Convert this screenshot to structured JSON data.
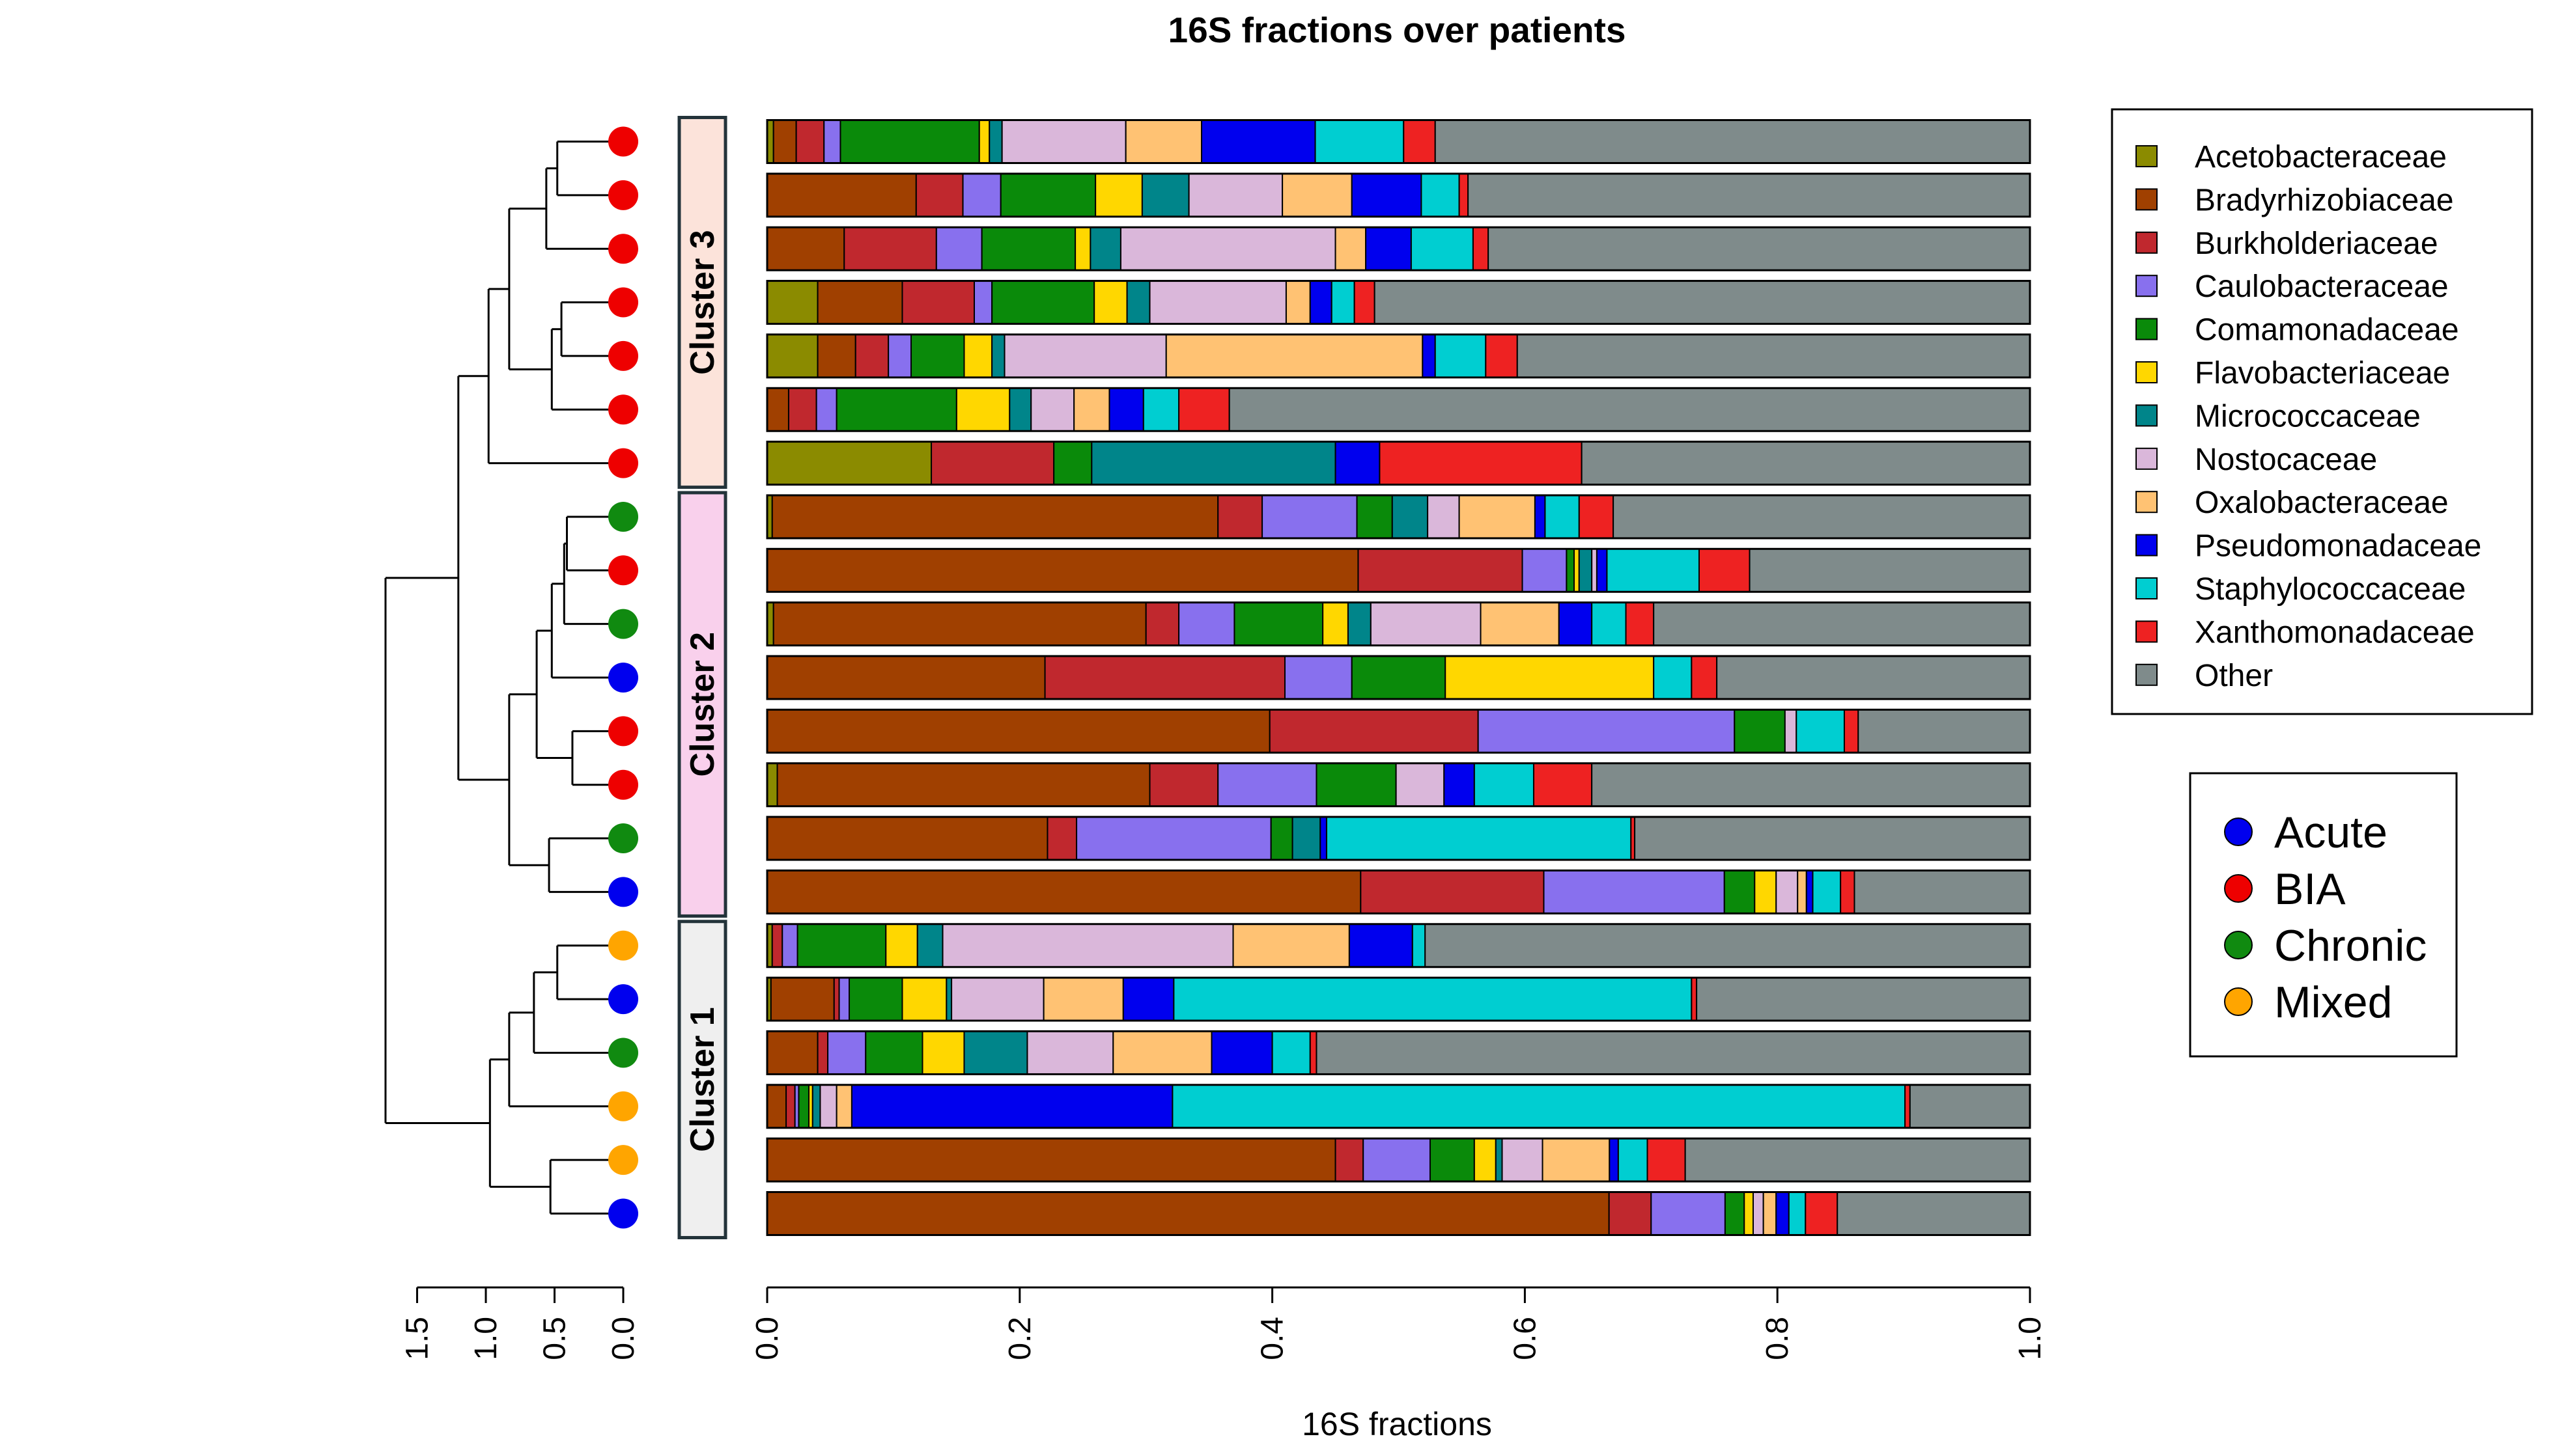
{
  "chart_data": {
    "type": "bar",
    "orientation": "horizontal-stacked",
    "title": "16S fractions over patients",
    "xlabel": "16S fractions",
    "xlim": [
      0,
      1
    ],
    "x_ticks": [
      "0.0",
      "0.2",
      "0.4",
      "0.6",
      "0.8",
      "1.0"
    ],
    "dendrogram_axis": {
      "ticks": [
        "1.5",
        "1.0",
        "0.5",
        "0.0"
      ],
      "range": [
        0,
        1.5
      ]
    },
    "families": [
      {
        "name": "Acetobacteraceae",
        "color": "#8B8B00"
      },
      {
        "name": "Bradyrhizobiaceae",
        "color": "#A04000"
      },
      {
        "name": "Burkholderiaceae",
        "color": "#C0282E"
      },
      {
        "name": "Caulobacteraceae",
        "color": "#8870EE"
      },
      {
        "name": "Comamonadaceae",
        "color": "#0A8A0A"
      },
      {
        "name": "Flavobacteriaceae",
        "color": "#FFD700"
      },
      {
        "name": "Micrococcaceae",
        "color": "#00858A"
      },
      {
        "name": "Nostocaceae",
        "color": "#DAB7DA"
      },
      {
        "name": "Oxalobacteraceae",
        "color": "#FFC273"
      },
      {
        "name": "Pseudomonadaceae",
        "color": "#0000EE"
      },
      {
        "name": "Staphylococcaceae",
        "color": "#00CED1"
      },
      {
        "name": "Xanthomonadaceae",
        "color": "#EE2222"
      },
      {
        "name": "Other",
        "color": "#7F8B8B"
      }
    ],
    "groups": [
      {
        "name": "Acute",
        "color": "#0000EE"
      },
      {
        "name": "BIA",
        "color": "#EE0000"
      },
      {
        "name": "Chronic",
        "color": "#108A10"
      },
      {
        "name": "Mixed",
        "color": "#FFA500"
      }
    ],
    "clusters": [
      {
        "label": "Cluster 3",
        "first_row": 0,
        "last_row": 6,
        "fill": "#FCE3DA"
      },
      {
        "label": "Cluster 2",
        "first_row": 7,
        "last_row": 14,
        "fill": "#F9D0EC"
      },
      {
        "label": "Cluster 1",
        "first_row": 15,
        "last_row": 20,
        "fill": "#EFEFEF"
      }
    ],
    "patients": [
      {
        "group": "BIA",
        "values": [
          0.005,
          0.018,
          0.022,
          0.013,
          0.11,
          0.008,
          0.01,
          0.098,
          0.06,
          0.09,
          0.07,
          0.025,
          0.471
        ]
      },
      {
        "group": "BIA",
        "values": [
          0,
          0.118,
          0.037,
          0.03,
          0.075,
          0.037,
          0.037,
          0.074,
          0.055,
          0.055,
          0.03,
          0.007,
          0.445
        ]
      },
      {
        "group": "BIA",
        "values": [
          0,
          0.061,
          0.073,
          0.036,
          0.074,
          0.012,
          0.024,
          0.17,
          0.024,
          0.036,
          0.049,
          0.012,
          0.429
        ]
      },
      {
        "group": "BIA",
        "values": [
          0.04,
          0.067,
          0.057,
          0.014,
          0.081,
          0.026,
          0.018,
          0.108,
          0.019,
          0.017,
          0.018,
          0.016,
          0.519
        ]
      },
      {
        "group": "BIA",
        "values": [
          0.04,
          0.03,
          0.026,
          0.018,
          0.042,
          0.022,
          0.01,
          0.128,
          0.203,
          0.01,
          0.04,
          0.025,
          0.406
        ]
      },
      {
        "group": "BIA",
        "values": [
          0,
          0.017,
          0.022,
          0.016,
          0.095,
          0.042,
          0.017,
          0.034,
          0.028,
          0.027,
          0.028,
          0.04,
          0.634
        ]
      },
      {
        "group": "BIA",
        "values": [
          0.13,
          0,
          0.097,
          0,
          0.03,
          0,
          0.193,
          0,
          0,
          0.035,
          0,
          0.16,
          0.355
        ]
      },
      {
        "group": "Chronic",
        "values": [
          0.004,
          0.353,
          0.035,
          0.075,
          0.028,
          0,
          0.028,
          0.025,
          0.06,
          0.008,
          0.027,
          0.027,
          0.33
        ]
      },
      {
        "group": "BIA",
        "values": [
          0,
          0.468,
          0.13,
          0.035,
          0.006,
          0.004,
          0.01,
          0.004,
          0,
          0.008,
          0.073,
          0.04,
          0.222
        ]
      },
      {
        "group": "Chronic",
        "values": [
          0.005,
          0.295,
          0.026,
          0.044,
          0.07,
          0.02,
          0.018,
          0.087,
          0.062,
          0.026,
          0.027,
          0.022,
          0.298
        ]
      },
      {
        "group": "Acute",
        "values": [
          0,
          0.22,
          0.19,
          0.053,
          0.074,
          0.165,
          0,
          0,
          0,
          0,
          0.03,
          0.02,
          0.248
        ]
      },
      {
        "group": "BIA",
        "values": [
          0,
          0.398,
          0.165,
          0.203,
          0.04,
          0,
          0,
          0.009,
          0,
          0,
          0.038,
          0.011,
          0.136
        ]
      },
      {
        "group": "BIA",
        "values": [
          0.008,
          0.295,
          0.054,
          0.078,
          0.063,
          0,
          0,
          0.038,
          0,
          0.024,
          0.047,
          0.046,
          0.347
        ]
      },
      {
        "group": "Chronic",
        "values": [
          0,
          0.222,
          0.023,
          0.154,
          0.017,
          0,
          0.022,
          0,
          0,
          0.005,
          0.241,
          0.003,
          0.313
        ]
      },
      {
        "group": "Acute",
        "values": [
          0,
          0.47,
          0.145,
          0.143,
          0.024,
          0.017,
          0,
          0.017,
          0.007,
          0.005,
          0.022,
          0.011,
          0.139
        ]
      },
      {
        "group": "Mixed",
        "values": [
          0.004,
          0,
          0.008,
          0.012,
          0.07,
          0.025,
          0.02,
          0.23,
          0.092,
          0.05,
          0.01,
          0,
          0.479
        ]
      },
      {
        "group": "Acute",
        "values": [
          0.003,
          0.05,
          0.004,
          0.008,
          0.042,
          0.035,
          0.004,
          0.073,
          0.063,
          0.04,
          0.41,
          0.004,
          0.264
        ]
      },
      {
        "group": "Chronic",
        "values": [
          0,
          0.04,
          0.008,
          0.03,
          0.045,
          0.033,
          0.05,
          0.068,
          0.078,
          0.048,
          0.03,
          0.005,
          0.565
        ]
      },
      {
        "group": "Mixed",
        "values": [
          0,
          0.015,
          0.007,
          0.003,
          0.008,
          0.003,
          0.006,
          0.013,
          0.012,
          0.254,
          0.58,
          0.004,
          0.095
        ]
      },
      {
        "group": "Mixed",
        "values": [
          0,
          0.45,
          0.022,
          0.053,
          0.035,
          0.017,
          0.005,
          0.032,
          0.053,
          0.007,
          0.023,
          0.03,
          0.273
        ]
      },
      {
        "group": "Acute",
        "values": [
          0,
          0.66,
          0.033,
          0.058,
          0.015,
          0.007,
          0,
          0.008,
          0.01,
          0.01,
          0.013,
          0.025,
          0.151
        ]
      }
    ],
    "dendrogram_merges": [
      {
        "a": "L0",
        "b": "L1",
        "h": 0.48
      },
      {
        "a": "N0",
        "b": "L2",
        "h": 0.56
      },
      {
        "a": "L3",
        "b": "L4",
        "h": 0.45
      },
      {
        "a": "N2",
        "b": "L5",
        "h": 0.52
      },
      {
        "a": "N1",
        "b": "N3",
        "h": 0.83
      },
      {
        "a": "N4",
        "b": "L6",
        "h": 0.98
      },
      {
        "a": "L7",
        "b": "L8",
        "h": 0.41
      },
      {
        "a": "N6",
        "b": "L9",
        "h": 0.43
      },
      {
        "a": "N7",
        "b": "L10",
        "h": 0.52
      },
      {
        "a": "L11",
        "b": "L12",
        "h": 0.37
      },
      {
        "a": "N8",
        "b": "N9",
        "h": 0.63
      },
      {
        "a": "L13",
        "b": "L14",
        "h": 0.54
      },
      {
        "a": "N10",
        "b": "N11",
        "h": 0.83
      },
      {
        "a": "N5",
        "b": "N12",
        "h": 1.2
      },
      {
        "a": "L15",
        "b": "L16",
        "h": 0.48
      },
      {
        "a": "N14",
        "b": "L17",
        "h": 0.65
      },
      {
        "a": "N15",
        "b": "L18",
        "h": 0.83
      },
      {
        "a": "L19",
        "b": "L20",
        "h": 0.53
      },
      {
        "a": "N16",
        "b": "N17",
        "h": 0.97
      },
      {
        "a": "N13",
        "b": "N18",
        "h": 1.73
      }
    ]
  }
}
